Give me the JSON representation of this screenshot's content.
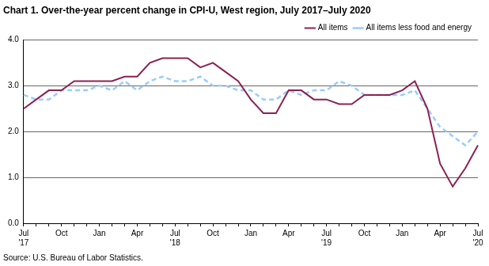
{
  "chart_data": {
    "type": "line",
    "title": "Chart 1. Over-the-year percent change in CPI-U, West region, July 2017–July 2020",
    "source": "Source: U.S. Bureau of Labor Statistics.",
    "categories": [
      "Jul\n'17",
      null,
      null,
      "Oct",
      null,
      null,
      "Jan",
      null,
      null,
      "Apr",
      null,
      null,
      "Jul\n'18",
      null,
      null,
      "Oct",
      null,
      null,
      "Jan",
      null,
      null,
      "Apr",
      null,
      null,
      "Jul\n'19",
      null,
      null,
      "Oct",
      null,
      null,
      "Jan",
      null,
      null,
      "Apr",
      null,
      null,
      "Jul\n'20"
    ],
    "series": [
      {
        "name": "All items",
        "color": "#8b2252",
        "line_style": "solid",
        "marker": "none",
        "values": [
          2.5,
          2.7,
          2.9,
          2.9,
          3.1,
          3.1,
          3.1,
          3.1,
          3.2,
          3.2,
          3.5,
          3.6,
          3.6,
          3.6,
          3.4,
          3.5,
          3.3,
          3.1,
          2.7,
          2.4,
          2.4,
          2.9,
          2.9,
          2.7,
          2.7,
          2.6,
          2.6,
          2.8,
          2.8,
          2.8,
          2.9,
          3.1,
          2.5,
          1.3,
          0.8,
          1.2,
          1.7
        ]
      },
      {
        "name": "All items less food and energy",
        "color": "#99ccff",
        "line_style": "dashed",
        "marker": "none",
        "values": [
          2.8,
          2.7,
          2.7,
          2.9,
          2.9,
          2.9,
          3.0,
          2.9,
          3.1,
          2.9,
          3.1,
          3.2,
          3.1,
          3.1,
          3.2,
          3.0,
          3.0,
          2.9,
          2.9,
          2.7,
          2.7,
          2.9,
          2.8,
          2.9,
          2.9,
          3.1,
          3.0,
          2.8,
          2.8,
          2.8,
          2.8,
          2.9,
          2.5,
          2.1,
          1.9,
          1.7,
          2.0
        ]
      }
    ],
    "ylim": [
      0,
      4
    ],
    "yticks": [
      {
        "value": 0,
        "label": "0.0"
      },
      {
        "value": 1,
        "label": "1.0"
      },
      {
        "value": 2,
        "label": "2.0"
      },
      {
        "value": 3,
        "label": "3.0"
      },
      {
        "value": 4,
        "label": "4.0"
      }
    ],
    "grid": true,
    "legend": "upper right"
  }
}
